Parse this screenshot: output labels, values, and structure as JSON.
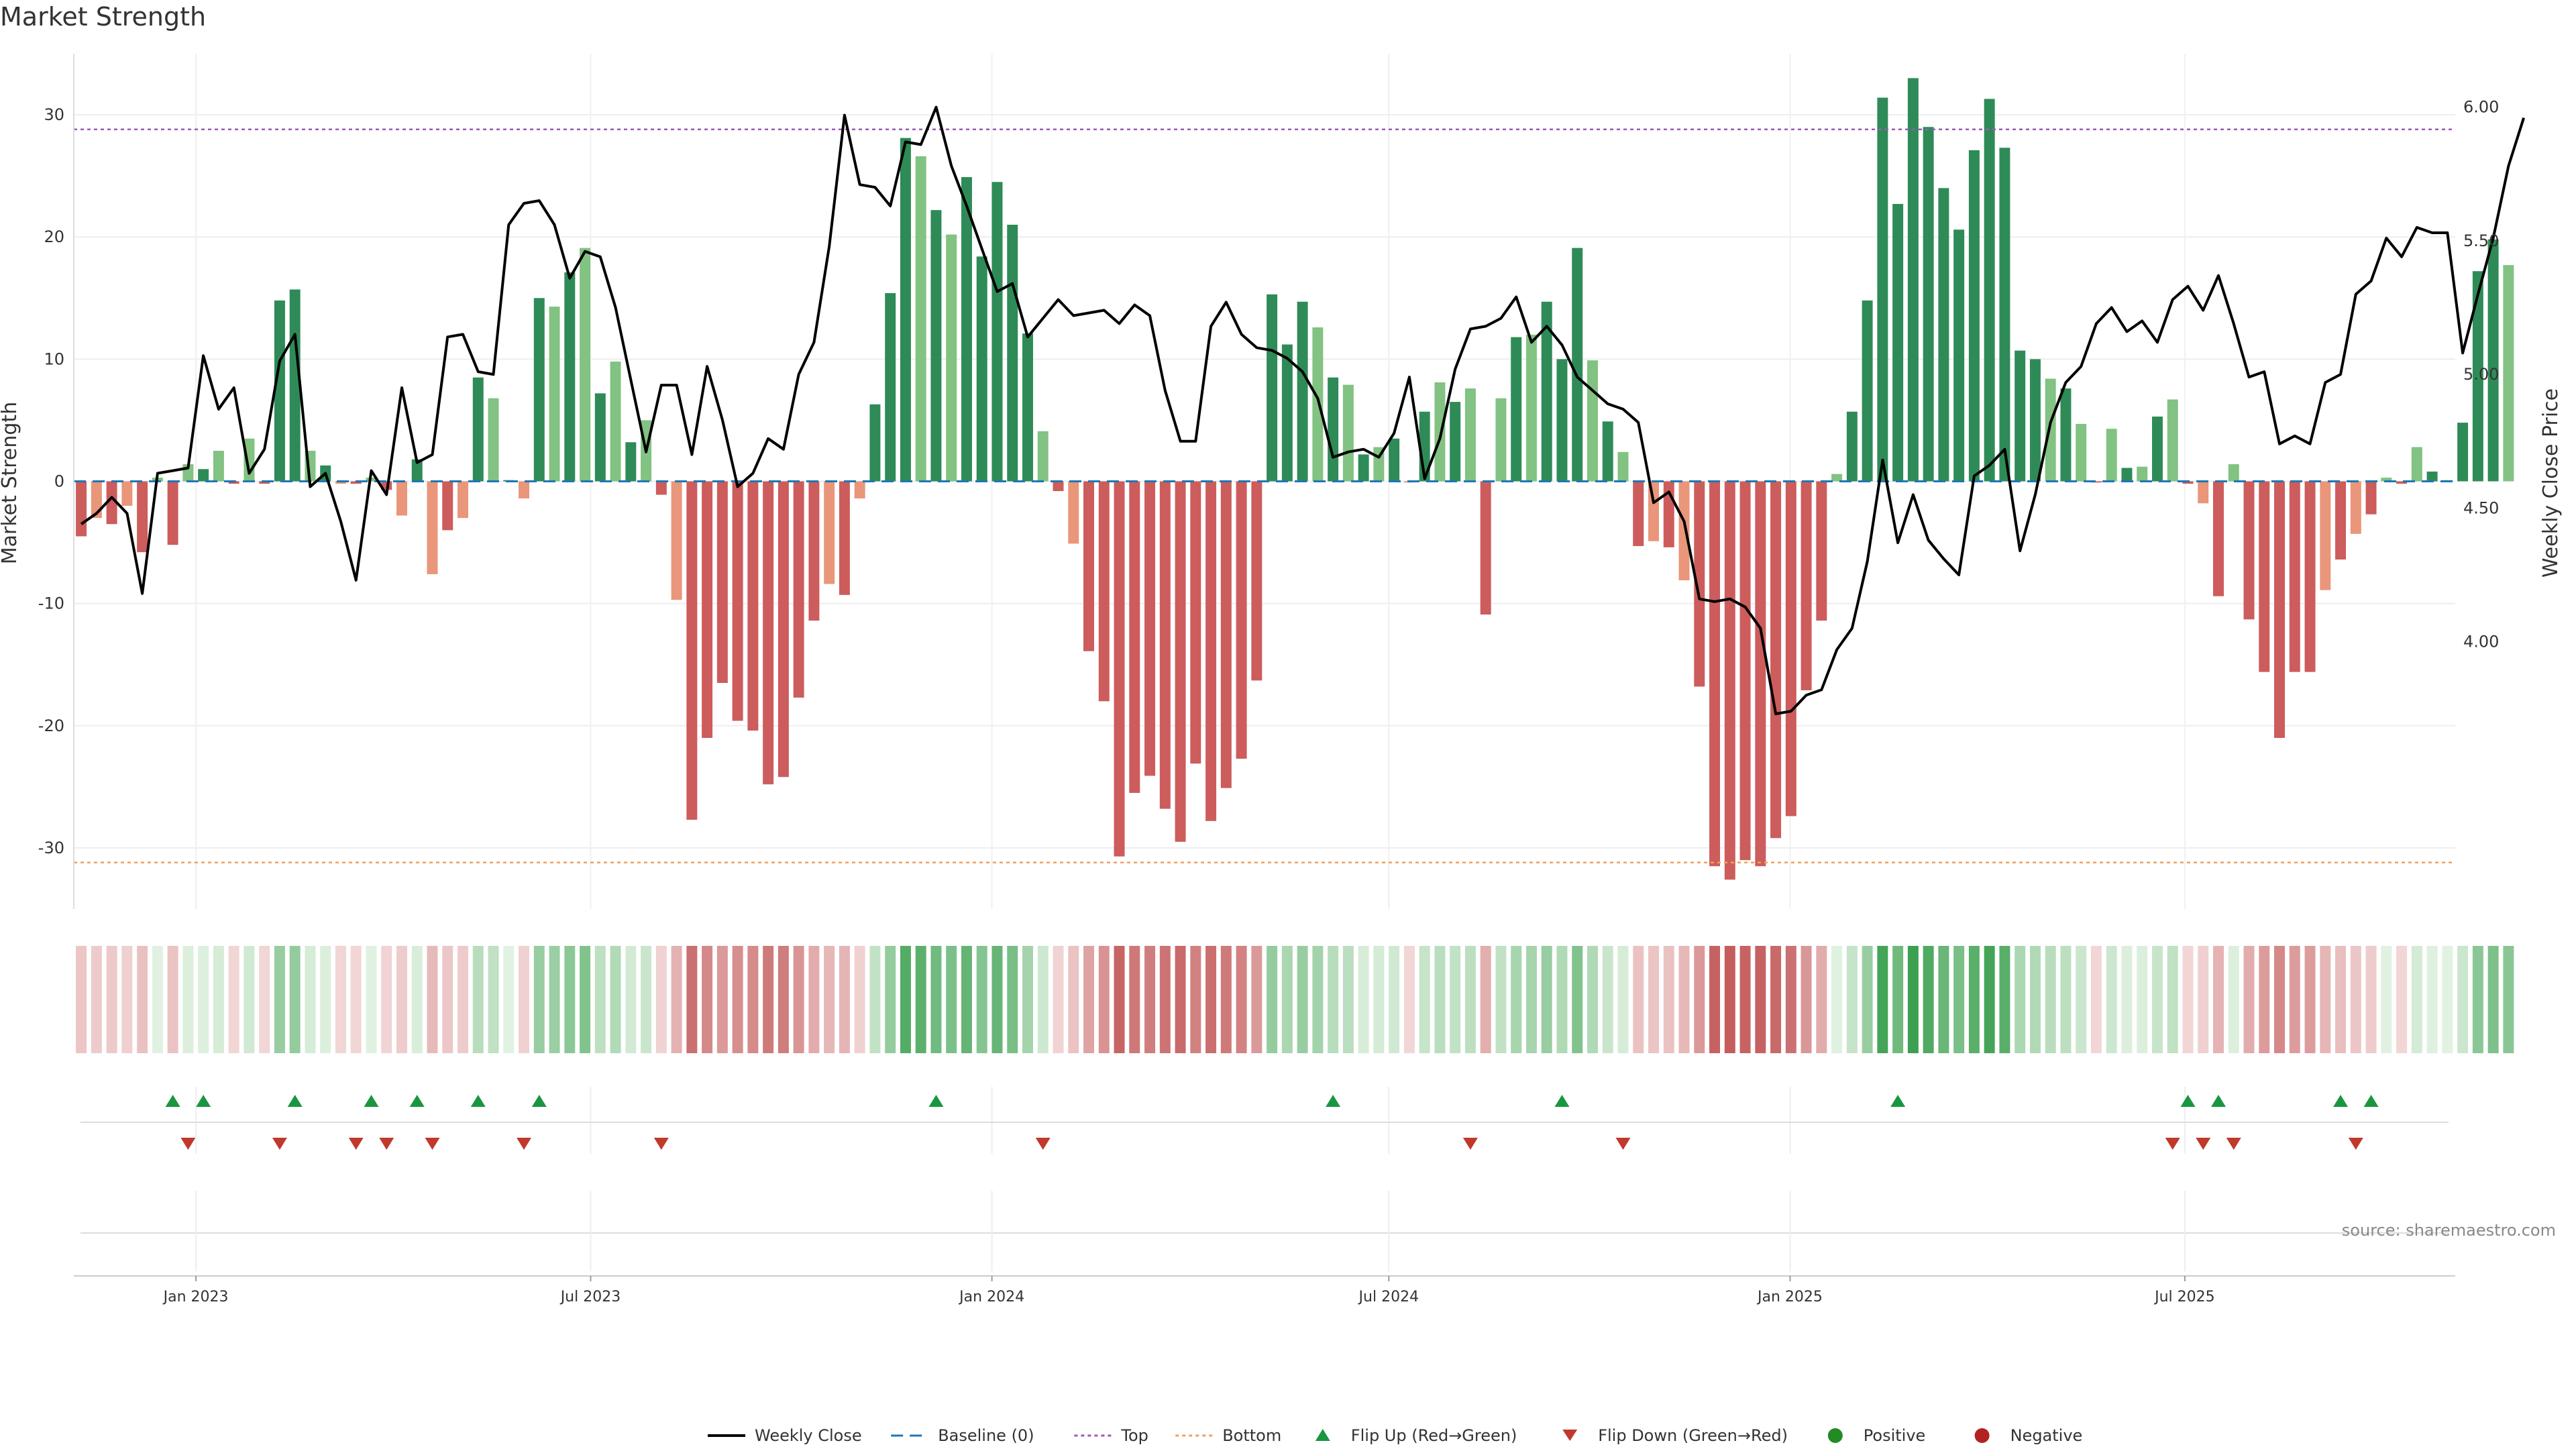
{
  "chart_data": {
    "type": "bar",
    "title": "Market Strength",
    "ylabel": "Market Strength",
    "y2label": "Weekly Close Price",
    "ylim": [
      -35,
      35
    ],
    "y2lim": [
      3.0,
      6.2
    ],
    "yticks": [
      -30,
      -20,
      -10,
      0,
      10,
      20,
      30
    ],
    "y2ticks": [
      "4.00",
      "4.50",
      "5.00",
      "5.50",
      "6.00"
    ],
    "xlim": [
      "2022-11-06",
      "2025-11-02"
    ],
    "xticks": [
      {
        "date": "2023-01-01",
        "label": "Jan 2023"
      },
      {
        "date": "2023-07-01",
        "label": "Jul 2023"
      },
      {
        "date": "2024-01-01",
        "label": "Jan 2024"
      },
      {
        "date": "2024-07-01",
        "label": "Jul 2024"
      },
      {
        "date": "2025-01-01",
        "label": "Jan 2025"
      },
      {
        "date": "2025-07-01",
        "label": "Jul 2025"
      }
    ],
    "start_week": "2022-11-06",
    "week_step_days": 7,
    "grid": true,
    "top_threshold": 28.8,
    "bottom_threshold": -31.2,
    "baseline": 0,
    "strength": [
      -4.5,
      -3,
      -3.5,
      -2,
      -5.8,
      0.3,
      -5.2,
      1.4,
      1,
      2.5,
      -0.2,
      3.5,
      -0.2,
      14.8,
      15.7,
      2.5,
      1.3,
      -0.2,
      -0.2,
      0.3,
      -0.7,
      -2.8,
      1.8,
      -7.6,
      -4,
      -3,
      8.5,
      6.8,
      0.1,
      -1.4,
      15,
      14.3,
      17.1,
      19.1,
      7.2,
      9.8,
      3.2,
      5,
      -1.1,
      -9.7,
      -27.7,
      -21,
      -16.5,
      -19.6,
      -20.4,
      -24.8,
      -24.2,
      -17.7,
      -11.4,
      -8.4,
      -9.3,
      -1.4,
      6.3,
      15.4,
      28.1,
      26.6,
      22.2,
      20.2,
      24.9,
      18.4,
      24.5,
      21,
      12.1,
      4.1,
      -0.8,
      -5.1,
      -13.9,
      -18,
      -30.7,
      -25.5,
      -24.1,
      -26.8,
      -29.5,
      -23.1,
      -27.8,
      -25.1,
      -22.7,
      -16.3,
      15.3,
      11.2,
      14.7,
      12.6,
      8.5,
      7.9,
      2.2,
      2.8,
      3.5,
      -0.1,
      5.7,
      8.1,
      6.5,
      7.6,
      -10.9,
      6.8,
      11.8,
      12,
      14.7,
      10,
      19.1,
      9.9,
      4.9,
      2.4,
      -5.3,
      -4.9,
      -5.4,
      -8.1,
      -16.8,
      -31.5,
      -32.6,
      -31,
      -31.5,
      -29.2,
      -27.4,
      -17.1,
      -11.4,
      0.6,
      5.7,
      14.8,
      31.4,
      22.7,
      33,
      29,
      24,
      20.6,
      27.1,
      31.3,
      27.3,
      10.7,
      10,
      8.4,
      7.6,
      4.7,
      -0.1,
      4.3,
      1.1,
      1.2,
      5.3,
      6.7,
      -0.2,
      -1.8,
      -9.4,
      1.4,
      -11.3,
      -15.6,
      -21,
      -15.6,
      -15.6,
      -8.9,
      -6.4,
      -4.3,
      -2.7,
      0.3,
      -0.2,
      2.8,
      0.8,
      0.1,
      4.8,
      17.2,
      19.8,
      17.7
    ],
    "close": [
      4.44,
      4.48,
      4.54,
      4.48,
      4.18,
      4.63,
      4.64,
      4.65,
      5.07,
      4.87,
      4.95,
      4.63,
      4.72,
      5.05,
      5.15,
      4.58,
      4.63,
      4.45,
      4.23,
      4.64,
      4.55,
      4.95,
      4.67,
      4.7,
      5.14,
      5.15,
      5.01,
      5,
      5.56,
      5.64,
      5.65,
      5.56,
      5.36,
      5.46,
      5.44,
      5.25,
      4.98,
      4.71,
      4.96,
      4.96,
      4.7,
      5.03,
      4.83,
      4.58,
      4.63,
      4.76,
      4.72,
      5,
      5.12,
      5.48,
      5.97,
      5.71,
      5.7,
      5.63,
      5.87,
      5.86,
      6,
      5.78,
      5.63,
      5.47,
      5.31,
      5.34,
      5.14,
      5.21,
      5.28,
      5.22,
      5.23,
      5.24,
      5.19,
      5.26,
      5.22,
      4.94,
      4.75,
      4.75,
      5.18,
      5.27,
      5.15,
      5.1,
      5.09,
      5.06,
      5.01,
      4.91,
      4.69,
      4.71,
      4.72,
      4.69,
      4.78,
      4.99,
      4.61,
      4.76,
      5.02,
      5.17,
      5.18,
      5.21,
      5.29,
      5.12,
      5.18,
      5.11,
      4.99,
      4.94,
      4.89,
      4.87,
      4.82,
      4.52,
      4.56,
      4.45,
      4.16,
      4.15,
      4.16,
      4.13,
      4.05,
      3.73,
      3.74,
      3.8,
      3.82,
      3.97,
      4.05,
      4.3,
      4.68,
      4.37,
      4.55,
      4.38,
      4.31,
      4.25,
      4.62,
      4.66,
      4.72,
      4.34,
      4.55,
      4.82,
      4.97,
      5.03,
      5.19,
      5.25,
      5.16,
      5.2,
      5.12,
      5.28,
      5.33,
      5.24,
      5.37,
      5.19,
      4.99,
      5.01,
      4.74,
      4.77,
      4.74,
      4.97,
      5,
      5.3,
      5.35,
      5.51,
      5.44,
      5.55,
      5.53,
      5.53,
      5.08,
      5.3,
      5.51,
      5.78,
      5.96
    ],
    "top_label": "Top",
    "bottom_label": "Bottom",
    "colors": {
      "pos_dark": "#2e8b57",
      "pos_light": "#82c282",
      "neg_dark": "#cd5c5c",
      "neg_light": "#e9967a",
      "close": "#000000",
      "baseline": "#1f77b4",
      "top": "#9b59b6",
      "bottom": "#f0a060",
      "flip_up": "#1a9641",
      "flip_down": "#c0392b",
      "positive": "#228b22",
      "negative": "#b22222"
    },
    "flip_up_weeks": [
      6,
      8,
      14,
      19,
      22,
      26,
      30,
      56,
      82,
      97,
      119,
      138,
      140,
      148,
      150
    ],
    "flip_down_weeks": [
      7,
      13,
      18,
      20,
      23,
      29,
      38,
      63,
      91,
      101,
      137,
      139,
      141,
      149
    ],
    "legend": [
      {
        "label": "Weekly Close",
        "kind": "line"
      },
      {
        "label": "Baseline (0)",
        "kind": "dash"
      },
      {
        "label": "Top",
        "kind": "dot"
      },
      {
        "label": "Bottom",
        "kind": "dot"
      },
      {
        "label": "Flip Up (Red→Green)",
        "kind": "tri_up"
      },
      {
        "label": "Flip Down (Green→Red)",
        "kind": "tri_down"
      },
      {
        "label": "Positive",
        "kind": "circle"
      },
      {
        "label": "Negative",
        "kind": "circle"
      }
    ],
    "source": "source: sharemaestro.com"
  }
}
